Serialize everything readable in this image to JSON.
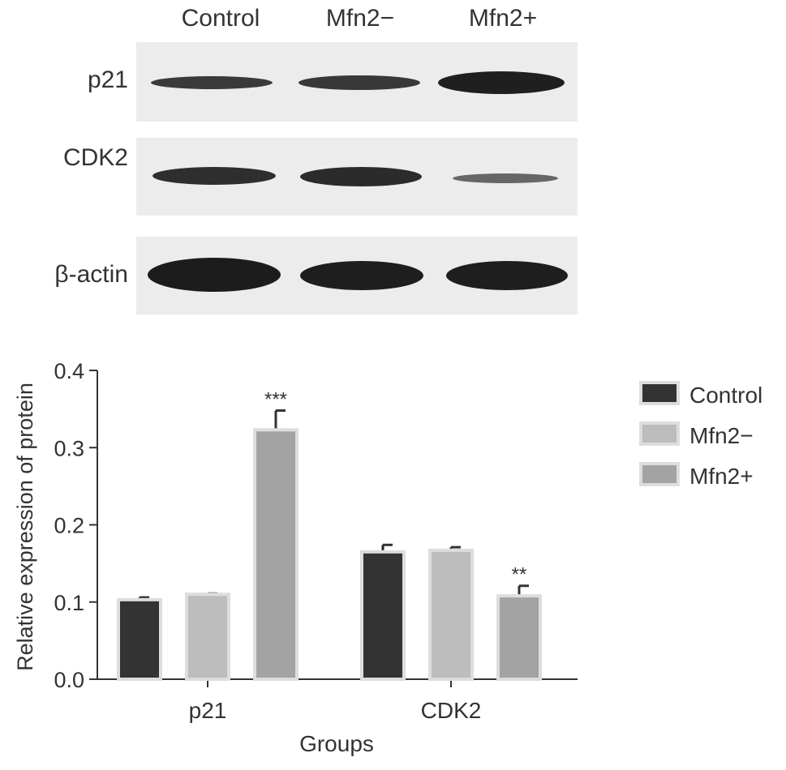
{
  "blot": {
    "lanes": [
      "Control",
      "Mfn2−",
      "Mfn2+"
    ],
    "rows": [
      {
        "label": "p21"
      },
      {
        "label": "CDK2"
      },
      {
        "label": "β-actin"
      }
    ]
  },
  "chart_data": {
    "type": "bar",
    "categories": [
      "p21",
      "CDK2"
    ],
    "series": [
      {
        "name": "Control",
        "color": "#333333",
        "values": [
          0.103,
          0.165
        ],
        "errors": [
          0.003,
          0.009
        ]
      },
      {
        "name": "Mfn2−",
        "color": "#bdbdbd",
        "values": [
          0.11,
          0.167
        ],
        "errors": [
          0.001,
          0.004
        ]
      },
      {
        "name": "Mfn2+",
        "color": "#a3a3a3",
        "values": [
          0.323,
          0.108
        ],
        "errors": [
          0.025,
          0.013
        ]
      }
    ],
    "significance": [
      {
        "category": "p21",
        "series": "Mfn2+",
        "label": "***"
      },
      {
        "category": "CDK2",
        "series": "Mfn2+",
        "label": "**"
      }
    ],
    "xlabel": "Groups",
    "ylabel": "Relative expression of protein",
    "ylim": [
      0,
      0.4
    ],
    "yticks": [
      "0.0",
      "0.1",
      "0.2",
      "0.3",
      "0.4"
    ],
    "legend_position": "right",
    "grid": false
  }
}
